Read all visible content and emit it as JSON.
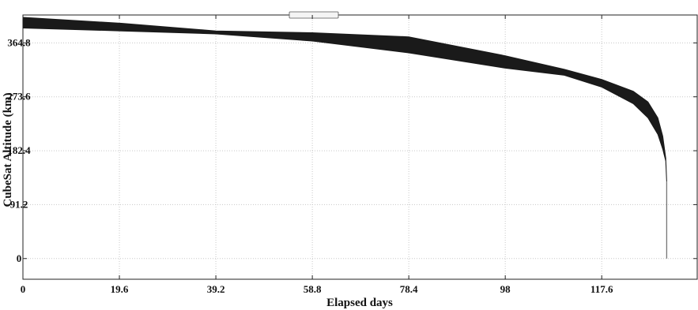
{
  "chart_data": {
    "type": "area",
    "title": "",
    "xlabel": "Elapsed days",
    "ylabel": "CubeSat Altitude (km)",
    "xlim": [
      0,
      137
    ],
    "ylim": [
      -35,
      412
    ],
    "x_ticks": [
      0,
      19.6,
      39.2,
      58.8,
      78.4,
      98,
      117.6
    ],
    "x_tick_labels": [
      "0",
      "19.6",
      "39.2",
      "58.8",
      "78.4",
      "98",
      "117.6"
    ],
    "y_ticks": [
      0,
      91.2,
      182.4,
      273.6,
      364.8
    ],
    "y_tick_labels": [
      "0",
      "91.2",
      "182.4",
      "273.6",
      "364.8"
    ],
    "grid": true,
    "series": [
      {
        "x": [
          0,
          20,
          39.2,
          58.8,
          78.4,
          98,
          110,
          117.6,
          124,
          127,
          129,
          130,
          130.6,
          130.8
        ],
        "y_upper": [
          408,
          398,
          385,
          382,
          375,
          343,
          320,
          303,
          283,
          265,
          238,
          207,
          170,
          130
        ],
        "y_lower": [
          390,
          385,
          380,
          368,
          348,
          322,
          310,
          290,
          262,
          238,
          210,
          185,
          165,
          130
        ],
        "line_to": [
          130.8,
          0
        ],
        "color": "#1a1a1a"
      }
    ]
  }
}
